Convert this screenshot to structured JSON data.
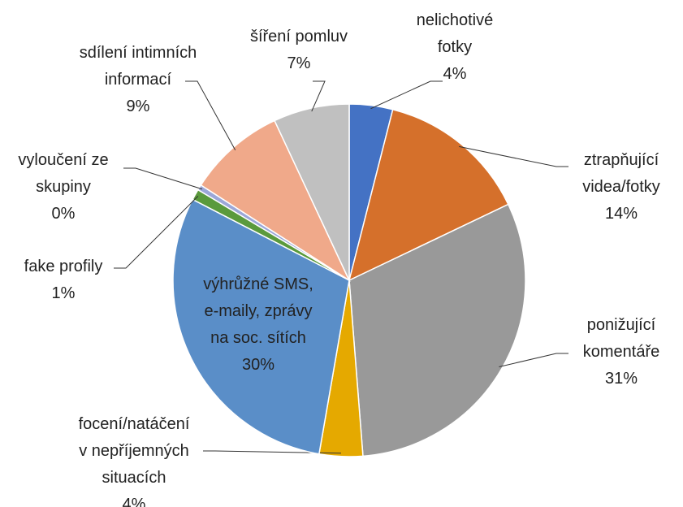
{
  "chart_data": {
    "type": "pie",
    "categories": [
      "nelichotivé\nfotky",
      "ztrapňující\nvidea/fotky",
      "ponižující\nkomentáře",
      "focení/natáčení\nv nepříjemných\nsituacích",
      "výhrůžné SMS,\ne-maily, zprávy\nna soc. sítích",
      "fake profily",
      "vyloučení ze\nskupiny",
      "sdílení intimních\ninformací",
      "šíření pomluv"
    ],
    "values": [
      4,
      14,
      31,
      4,
      30,
      1,
      0.5,
      9,
      7
    ],
    "value_labels": [
      "4%",
      "14%",
      "31%",
      "4%",
      "30%",
      "1%",
      "0%",
      "9%",
      "7%"
    ],
    "colors": [
      "#4472c4",
      "#d5702b",
      "#999999",
      "#e5a900",
      "#5a8ec8",
      "#5a9a3c",
      "#9ba7d8",
      "#f0a98a",
      "#c0c0c0"
    ]
  }
}
